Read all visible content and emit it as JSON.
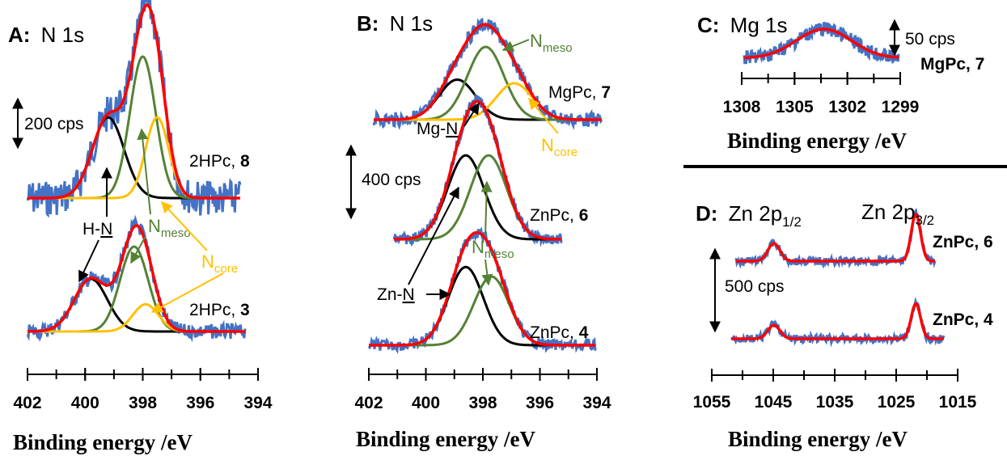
{
  "colors": {
    "experiment": "#4472c4",
    "envelope": "#ff0000",
    "black_component": "#000000",
    "green_component": "#548235",
    "yellow_component": "#ffc000"
  },
  "chart_data": [
    {
      "panel": "A",
      "type": "line",
      "title_letter": "A:",
      "title_text": "N 1s",
      "xlabel": "Binding energy /eV",
      "x_reversed": true,
      "xlim": [
        402,
        394
      ],
      "ticks": [
        "402",
        "400",
        "398",
        "396",
        "394"
      ],
      "scale_bar": "200 cps",
      "series_labels": {
        "sample_a": "2HPc, ",
        "num_a": "8",
        "sample_b": "2HPc, ",
        "num_b": "3"
      },
      "annotations": {
        "hn": "H-",
        "hn_u": "N",
        "nmeso_n": "N",
        "nmeso_sub": "meso",
        "ncore_n": "N",
        "ncore_sub": "core"
      },
      "spectra": [
        {
          "sample": "2HPc, 8",
          "components": [
            {
              "color": "black",
              "center": 399.2,
              "height": 0.57,
              "fwhm": 1.3
            },
            {
              "color": "green",
              "center": 398.0,
              "height": 1.0,
              "fwhm": 1.05
            },
            {
              "color": "yellow",
              "center": 397.5,
              "height": 0.57,
              "fwhm": 0.95
            }
          ]
        },
        {
          "sample": "2HPc, 3",
          "components": [
            {
              "color": "black",
              "center": 399.8,
              "height": 0.62,
              "fwhm": 1.35
            },
            {
              "color": "green",
              "center": 398.3,
              "height": 1.0,
              "fwhm": 1.15
            },
            {
              "color": "yellow",
              "center": 397.9,
              "height": 0.32,
              "fwhm": 1.05
            }
          ]
        }
      ]
    },
    {
      "panel": "B",
      "type": "line",
      "title_letter": "B:",
      "title_text": "N 1s",
      "xlabel": "Binding energy /eV",
      "x_reversed": true,
      "xlim": [
        402,
        394
      ],
      "ticks": [
        "402",
        "400",
        "398",
        "396",
        "394"
      ],
      "scale_bar": "400 cps",
      "series_labels": {
        "sample_a": "MgPc, ",
        "num_a": "7",
        "sample_b": "ZnPc, ",
        "num_b": "6",
        "sample_c": "ZnPc, ",
        "num_c": "4"
      },
      "annotations": {
        "mgn": "Mg-",
        "mgn_u": "N",
        "znn": "Zn-",
        "znn_u": "N",
        "nmeso_n": "N",
        "nmeso_sub": "meso",
        "nmeso2_n": "N",
        "nmeso2_sub": "meso",
        "ncore_n": "N",
        "ncore_sub": "core"
      },
      "spectra": [
        {
          "sample": "MgPc, 7",
          "components": [
            {
              "color": "black",
              "center": 398.9,
              "height": 0.55,
              "fwhm": 1.5
            },
            {
              "color": "green",
              "center": 397.9,
              "height": 1.0,
              "fwhm": 1.5
            },
            {
              "color": "yellow",
              "center": 396.9,
              "height": 0.5,
              "fwhm": 1.5
            }
          ]
        },
        {
          "sample": "ZnPc, 6",
          "components": [
            {
              "color": "black",
              "center": 398.6,
              "height": 0.88,
              "fwhm": 1.5
            },
            {
              "color": "green",
              "center": 397.8,
              "height": 0.88,
              "fwhm": 1.5
            }
          ]
        },
        {
          "sample": "ZnPc, 4",
          "components": [
            {
              "color": "black",
              "center": 398.6,
              "height": 0.82,
              "fwhm": 1.45
            },
            {
              "color": "green",
              "center": 397.7,
              "height": 0.72,
              "fwhm": 1.45
            }
          ]
        }
      ]
    },
    {
      "panel": "C",
      "type": "line",
      "title_letter": "C:",
      "title_text": "Mg 1s",
      "xlabel": "Binding energy /eV",
      "x_reversed": true,
      "xlim": [
        1309,
        1298
      ],
      "ticks": [
        "1308",
        "1305",
        "1302",
        "1299"
      ],
      "scale_bar": "50 cps",
      "series_labels": {
        "sample_a": "MgPc, 7"
      },
      "spectra": [
        {
          "sample": "MgPc, 7",
          "components": [
            {
              "color": "red",
              "center": 1303.3,
              "height": 1.0,
              "fwhm": 4.5
            }
          ]
        }
      ]
    },
    {
      "panel": "D",
      "type": "line",
      "title_letter": "D:",
      "title_text": "Zn 2p",
      "title_sub": "1/2",
      "label_p32": "Zn 2p",
      "label_p32_sub": "3/2",
      "xlabel": "Binding energy /eV",
      "x_reversed": true,
      "xlim": [
        1055,
        1015
      ],
      "ticks": [
        "1055",
        "1045",
        "1035",
        "1025",
        "1015"
      ],
      "scale_bar": "500 cps",
      "series_labels": {
        "sample_a": "ZnPc, 6",
        "sample_b": "ZnPc, 4"
      },
      "spectra": [
        {
          "sample": "ZnPc, 6",
          "components": [
            {
              "color": "red",
              "center": 1044.9,
              "height": 0.38,
              "fwhm": 2.3
            },
            {
              "color": "red",
              "center": 1021.8,
              "height": 1.0,
              "fwhm": 1.8
            }
          ]
        },
        {
          "sample": "ZnPc, 4",
          "components": [
            {
              "color": "red",
              "center": 1044.9,
              "height": 0.35,
              "fwhm": 2.3
            },
            {
              "color": "red",
              "center": 1021.8,
              "height": 0.9,
              "fwhm": 1.8
            }
          ]
        }
      ]
    }
  ]
}
